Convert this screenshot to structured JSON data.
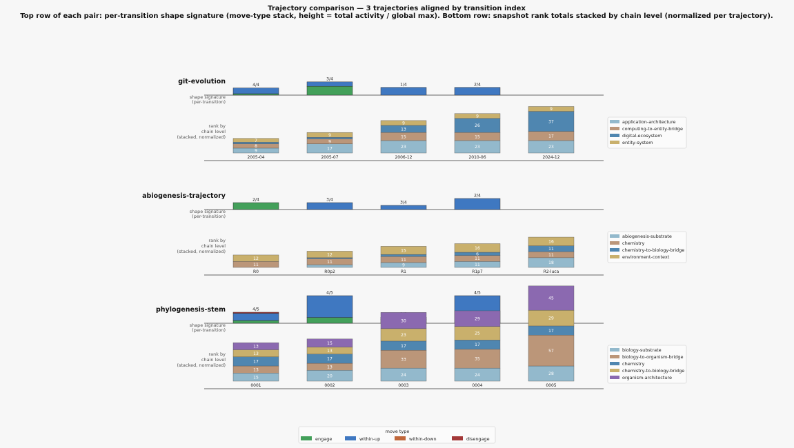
{
  "title_line1": "Trajectory comparison — 3 trajectories aligned by transition index",
  "title_line2": "Top row of each pair: per-transition shape signature (move-type stack, height = total activity / global max).  Bottom row: snapshot rank totals stacked by chain level (normalized per trajectory).",
  "row_labels": {
    "shape": [
      "shape signature",
      "(per-transition)"
    ],
    "rank": [
      "rank by",
      "chain level",
      "(stacked, normalized)"
    ]
  },
  "colors": {
    "engage": "#43a05a",
    "within-up": "#3f78c1",
    "within-down": "#c0673b",
    "disengage": "#a33838",
    "level1": "#93b9cc",
    "level2": "#bb9679",
    "level3": "#4f86b0",
    "level4": "#c9b06c",
    "level5": "#8b69b0"
  },
  "move_legend": {
    "title": "move type",
    "items": [
      {
        "label": "engage",
        "color": "#43a05a"
      },
      {
        "label": "within-up",
        "color": "#3f78c1"
      },
      {
        "label": "within-down",
        "color": "#c0673b"
      },
      {
        "label": "disengage",
        "color": "#a33838"
      }
    ]
  },
  "chart_data": [
    {
      "type": "bar",
      "title": "git-evolution",
      "shape_signature": [
        {
          "label": "4/4",
          "total": 0.26,
          "stack": [
            {
              "move": "engage",
              "value": 0.05
            },
            {
              "move": "within-up",
              "value": 0.21
            }
          ]
        },
        {
          "label": "3/4",
          "total": 0.48,
          "stack": [
            {
              "move": "engage",
              "value": 0.32
            },
            {
              "move": "within-up",
              "value": 0.16
            }
          ]
        },
        {
          "label": "1/4",
          "total": 0.28,
          "stack": [
            {
              "move": "within-up",
              "value": 0.28
            }
          ]
        },
        {
          "label": "2/4",
          "total": 0.28,
          "stack": [
            {
              "move": "within-up",
              "value": 0.28
            }
          ]
        }
      ],
      "snapshots": [
        "2005-04",
        "2005-07",
        "2006-12",
        "2010-06",
        "2024-12"
      ],
      "levels": [
        "application-architecture",
        "computing-to-entity-bridge",
        "digital-ecosystem",
        "entity-system"
      ],
      "rank_values": [
        [
          9,
          8,
          3,
          7
        ],
        [
          17,
          9,
          3,
          9
        ],
        [
          23,
          15,
          13,
          9
        ],
        [
          23,
          15,
          26,
          9
        ],
        [
          23,
          17,
          37,
          9
        ]
      ]
    },
    {
      "type": "bar",
      "title": "abiogenesis-trajectory",
      "shape_signature": [
        {
          "label": "2/4",
          "total": 0.25,
          "stack": [
            {
              "move": "engage",
              "value": 0.25
            }
          ]
        },
        {
          "label": "3/4",
          "total": 0.25,
          "stack": [
            {
              "move": "within-up",
              "value": 0.25
            }
          ]
        },
        {
          "label": "3/4",
          "total": 0.15,
          "stack": [
            {
              "move": "within-up",
              "value": 0.15
            }
          ]
        },
        {
          "label": "2/4",
          "total": 0.4,
          "stack": [
            {
              "move": "within-up",
              "value": 0.4
            }
          ]
        }
      ],
      "snapshots": [
        "R0",
        "R0p2",
        "R1",
        "R1p7",
        "R2-luca"
      ],
      "levels": [
        "abiogenesis-substrate",
        "chemistry",
        "chemistry-to-biology-bridge",
        "environment-context"
      ],
      "rank_values": [
        [
          0,
          11,
          0,
          12
        ],
        [
          5,
          11,
          2,
          12
        ],
        [
          9,
          11,
          4,
          15
        ],
        [
          11,
          11,
          6,
          16
        ],
        [
          18,
          11,
          11,
          16
        ]
      ]
    },
    {
      "type": "bar",
      "title": "phylogenesis-stem",
      "shape_signature": [
        {
          "label": "4/5",
          "total": 0.4,
          "stack": [
            {
              "move": "engage",
              "value": 0.1
            },
            {
              "move": "within-up",
              "value": 0.26
            },
            {
              "move": "disengage",
              "value": 0.04
            }
          ]
        },
        {
          "label": "4/5",
          "total": 1.0,
          "stack": [
            {
              "move": "engage",
              "value": 0.21
            },
            {
              "move": "within-up",
              "value": 0.79
            }
          ]
        },
        {
          "label": "3/5",
          "total": 0.22,
          "stack": [
            {
              "move": "within-up",
              "value": 0.14
            },
            {
              "move": "within-down",
              "value": 0.08
            }
          ]
        },
        {
          "label": "4/5",
          "total": 1.0,
          "stack": [
            {
              "move": "within-up",
              "value": 1.0
            }
          ]
        }
      ],
      "snapshots": [
        "0001",
        "0002",
        "0003",
        "0004",
        "0005"
      ],
      "levels": [
        "biology-substrate",
        "biology-to-organism-bridge",
        "chemistry",
        "chemistry-to-biology-bridge",
        "organism-architecture"
      ],
      "rank_values": [
        [
          15,
          13,
          17,
          13,
          13
        ],
        [
          20,
          13,
          17,
          13,
          15
        ],
        [
          24,
          33,
          17,
          23,
          30
        ],
        [
          24,
          35,
          17,
          25,
          29
        ],
        [
          28,
          57,
          17,
          29,
          45
        ]
      ]
    }
  ]
}
